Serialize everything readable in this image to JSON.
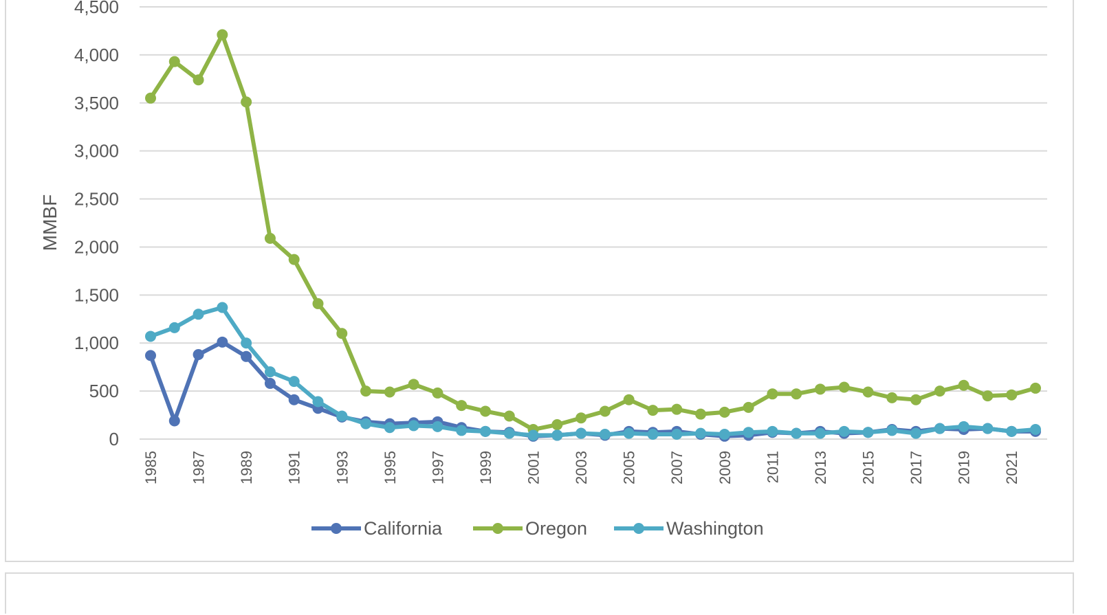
{
  "chart_data": {
    "type": "line",
    "title": "",
    "xlabel": "",
    "ylabel": "MMBF",
    "ylim": [
      0,
      4500
    ],
    "yticks": [
      0,
      500,
      1000,
      1500,
      2000,
      2500,
      3000,
      3500,
      4000,
      4500
    ],
    "ytick_labels": [
      "0",
      "500",
      "1,000",
      "1,500",
      "2,000",
      "2,500",
      "3,000",
      "3,500",
      "4,000",
      "4,500"
    ],
    "x": [
      1985,
      1986,
      1987,
      1988,
      1989,
      1990,
      1991,
      1992,
      1993,
      1994,
      1995,
      1996,
      1997,
      1998,
      1999,
      2000,
      2001,
      2002,
      2003,
      2004,
      2005,
      2006,
      2007,
      2008,
      2009,
      2010,
      2011,
      2012,
      2013,
      2014,
      2015,
      2016,
      2017,
      2018,
      2019,
      2020,
      2021,
      2022
    ],
    "xtick_labels": [
      "1985",
      "1987",
      "1989",
      "1991",
      "1993",
      "1995",
      "1997",
      "1999",
      "2001",
      "2003",
      "2005",
      "2007",
      "2009",
      "2011",
      "2013",
      "2015",
      "2017",
      "2019",
      "2021"
    ],
    "grid": true,
    "legend_position": "bottom",
    "series": [
      {
        "name": "California",
        "color": "#4f73b5",
        "values": [
          870,
          190,
          880,
          1010,
          860,
          580,
          410,
          320,
          230,
          180,
          160,
          170,
          180,
          120,
          80,
          70,
          30,
          40,
          60,
          40,
          80,
          70,
          80,
          50,
          30,
          40,
          70,
          60,
          80,
          60,
          70,
          100,
          80,
          110,
          100,
          110,
          80,
          80
        ]
      },
      {
        "name": "Oregon",
        "color": "#8fb446",
        "values": [
          3550,
          3930,
          3740,
          4210,
          3510,
          2090,
          1870,
          1410,
          1100,
          500,
          490,
          570,
          480,
          350,
          290,
          240,
          100,
          150,
          220,
          290,
          410,
          300,
          310,
          260,
          280,
          330,
          470,
          470,
          520,
          540,
          490,
          430,
          410,
          500,
          560,
          450,
          460,
          530
        ]
      },
      {
        "name": "Washington",
        "color": "#4eaac5",
        "values": [
          1070,
          1160,
          1300,
          1370,
          1000,
          700,
          600,
          390,
          240,
          160,
          120,
          140,
          130,
          90,
          80,
          60,
          40,
          40,
          60,
          50,
          60,
          50,
          50,
          60,
          50,
          70,
          80,
          60,
          60,
          80,
          70,
          90,
          60,
          110,
          130,
          110,
          80,
          100
        ]
      }
    ]
  }
}
